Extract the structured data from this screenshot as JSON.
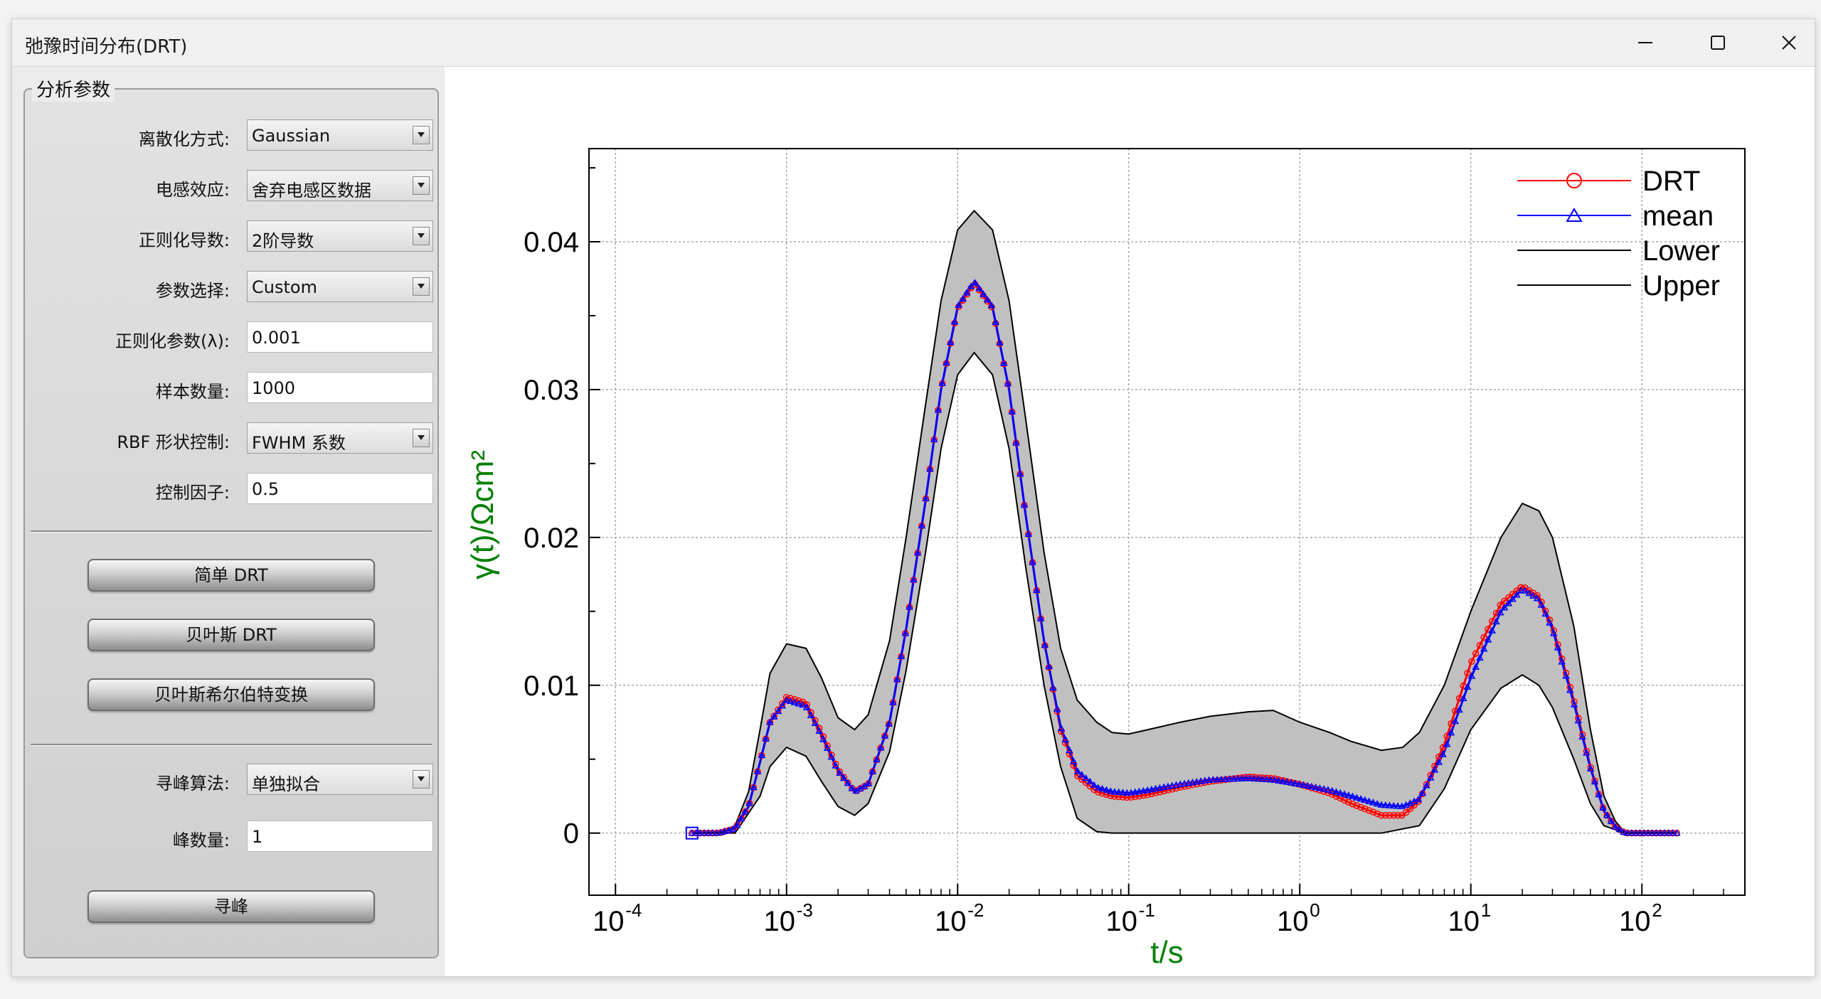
{
  "window": {
    "title": "弛豫时间分布(DRT)",
    "minimize_icon": "minimize-icon",
    "maximize_icon": "maximize-icon",
    "close_icon": "close-icon"
  },
  "panel": {
    "group_title": "分析参数",
    "rows": [
      {
        "label": "离散化方式:",
        "value": "Gaussian",
        "kind": "combo"
      },
      {
        "label": "电感效应:",
        "value": "舍弃电感区数据",
        "kind": "combo"
      },
      {
        "label": "正则化导数:",
        "value": "2阶导数",
        "kind": "combo"
      },
      {
        "label": "参数选择:",
        "value": "Custom",
        "kind": "combo"
      },
      {
        "label": "正则化参数(λ):",
        "value": "0.001",
        "kind": "input"
      },
      {
        "label": "样本数量:",
        "value": "1000",
        "kind": "input"
      },
      {
        "label": "RBF 形状控制:",
        "value": "FWHM 系数",
        "kind": "combo"
      },
      {
        "label": "控制因子:",
        "value": "0.5",
        "kind": "input"
      }
    ],
    "buttons": [
      "简单 DRT",
      "贝叶斯 DRT",
      "贝叶斯希尔伯特变换"
    ],
    "peak_rows": [
      {
        "label": "寻峰算法:",
        "value": "单独拟合",
        "kind": "combo"
      },
      {
        "label": "峰数量:",
        "value": "1",
        "kind": "input"
      }
    ],
    "peak_button": "寻峰"
  },
  "chart_data": {
    "type": "line",
    "title": "",
    "xlabel": "t/s",
    "ylabel": "γ(t)/Ωcm²",
    "xscale": "log",
    "xlim": [
      7e-05,
      400
    ],
    "ylim": [
      -0.0042,
      0.0463
    ],
    "x_tick_labels": [
      "10-4",
      "10-3",
      "10-2",
      "10-1",
      "100",
      "101",
      "102"
    ],
    "x_ticks": [
      0.0001,
      0.001,
      0.01,
      0.1,
      1,
      10,
      100
    ],
    "y_ticks": [
      0,
      0.01,
      0.02,
      0.03,
      0.04
    ],
    "y_tick_labels": [
      "0",
      "0.01",
      "0.02",
      "0.03",
      "0.04"
    ],
    "grid": true,
    "legend_position": "top-right",
    "series": [
      {
        "name": "DRT",
        "color": "#ff0000",
        "marker": "circle",
        "x": [
          0.00028,
          0.0004,
          0.0005,
          0.0006,
          0.0007,
          0.0008,
          0.001,
          0.0013,
          0.0016,
          0.002,
          0.0025,
          0.003,
          0.004,
          0.005,
          0.0065,
          0.008,
          0.01,
          0.0125,
          0.016,
          0.02,
          0.025,
          0.032,
          0.04,
          0.05,
          0.065,
          0.08,
          0.1,
          0.13,
          0.2,
          0.3,
          0.5,
          0.7,
          1,
          1.5,
          2,
          3,
          4,
          5,
          7,
          10,
          15,
          20,
          25,
          30,
          40,
          50,
          60,
          70,
          80,
          100,
          160
        ],
        "values": [
          0,
          0,
          0.0003,
          0.0018,
          0.0048,
          0.0075,
          0.0092,
          0.0088,
          0.0068,
          0.0043,
          0.0028,
          0.0033,
          0.0075,
          0.0138,
          0.0225,
          0.03,
          0.0355,
          0.0372,
          0.0355,
          0.03,
          0.0215,
          0.013,
          0.007,
          0.0039,
          0.0028,
          0.0025,
          0.0024,
          0.0026,
          0.0031,
          0.0035,
          0.0038,
          0.0037,
          0.0033,
          0.0027,
          0.002,
          0.0012,
          0.0012,
          0.0022,
          0.006,
          0.0115,
          0.0155,
          0.0167,
          0.016,
          0.014,
          0.009,
          0.0045,
          0.0015,
          0.0004,
          0,
          0,
          0
        ]
      },
      {
        "name": "mean",
        "color": "#0000ff",
        "marker": "triangle",
        "x": [
          0.00028,
          0.0004,
          0.0005,
          0.0006,
          0.0007,
          0.0008,
          0.001,
          0.0013,
          0.0016,
          0.002,
          0.0025,
          0.003,
          0.004,
          0.005,
          0.0065,
          0.008,
          0.01,
          0.0125,
          0.016,
          0.02,
          0.025,
          0.032,
          0.04,
          0.05,
          0.065,
          0.08,
          0.1,
          0.13,
          0.2,
          0.3,
          0.5,
          0.7,
          1,
          1.5,
          2,
          3,
          4,
          5,
          7,
          10,
          15,
          20,
          25,
          30,
          40,
          50,
          60,
          70,
          80,
          100,
          160
        ],
        "values": [
          0,
          0,
          0.0003,
          0.0018,
          0.0048,
          0.0075,
          0.009,
          0.0086,
          0.0066,
          0.0042,
          0.0028,
          0.0033,
          0.0075,
          0.0138,
          0.0225,
          0.03,
          0.0356,
          0.0373,
          0.0356,
          0.03,
          0.0215,
          0.013,
          0.0072,
          0.0042,
          0.0031,
          0.0028,
          0.0027,
          0.0029,
          0.0033,
          0.0036,
          0.0037,
          0.0036,
          0.0033,
          0.0029,
          0.0025,
          0.0019,
          0.0018,
          0.0023,
          0.0055,
          0.0105,
          0.015,
          0.0165,
          0.0158,
          0.0138,
          0.0088,
          0.0044,
          0.0015,
          0.0004,
          0,
          0,
          0
        ]
      },
      {
        "name": "Lower",
        "color": "#000000",
        "marker": "none",
        "x": [
          0.00028,
          0.0005,
          0.0007,
          0.0008,
          0.001,
          0.0013,
          0.0016,
          0.002,
          0.0025,
          0.003,
          0.004,
          0.005,
          0.0065,
          0.008,
          0.01,
          0.0125,
          0.016,
          0.02,
          0.025,
          0.032,
          0.04,
          0.05,
          0.065,
          0.08,
          0.1,
          0.13,
          1,
          3,
          5,
          7,
          10,
          15,
          20,
          25,
          30,
          40,
          50,
          60,
          80,
          160
        ],
        "values": [
          0,
          0,
          0.0025,
          0.0045,
          0.0058,
          0.0052,
          0.0035,
          0.0018,
          0.0012,
          0.002,
          0.0055,
          0.011,
          0.019,
          0.026,
          0.031,
          0.0325,
          0.031,
          0.026,
          0.018,
          0.01,
          0.0045,
          0.001,
          0.0001,
          0,
          0,
          0,
          0,
          0,
          0.0005,
          0.003,
          0.007,
          0.0098,
          0.0107,
          0.01,
          0.0085,
          0.005,
          0.002,
          0.0005,
          0,
          0
        ]
      },
      {
        "name": "Upper",
        "color": "#000000",
        "marker": "none",
        "x": [
          0.00028,
          0.0004,
          0.0005,
          0.0006,
          0.0007,
          0.0008,
          0.001,
          0.0013,
          0.0016,
          0.002,
          0.0025,
          0.003,
          0.004,
          0.005,
          0.0065,
          0.008,
          0.01,
          0.0125,
          0.016,
          0.02,
          0.025,
          0.032,
          0.04,
          0.05,
          0.065,
          0.08,
          0.1,
          0.13,
          0.2,
          0.3,
          0.5,
          0.7,
          1,
          1.5,
          2,
          3,
          4,
          5,
          7,
          10,
          15,
          20,
          25,
          30,
          40,
          50,
          60,
          70,
          80,
          100,
          160
        ],
        "values": [
          0,
          0,
          0.0005,
          0.0028,
          0.007,
          0.0108,
          0.0128,
          0.0125,
          0.0105,
          0.0078,
          0.007,
          0.008,
          0.013,
          0.02,
          0.029,
          0.036,
          0.0408,
          0.0421,
          0.0408,
          0.036,
          0.028,
          0.019,
          0.0125,
          0.009,
          0.0075,
          0.0068,
          0.0067,
          0.007,
          0.0075,
          0.0079,
          0.0082,
          0.0083,
          0.0075,
          0.0068,
          0.0062,
          0.0056,
          0.0058,
          0.0068,
          0.01,
          0.015,
          0.02,
          0.0223,
          0.0218,
          0.02,
          0.014,
          0.007,
          0.0025,
          0.0008,
          0,
          0,
          0
        ]
      }
    ],
    "marker_extra": {
      "x": 0.00028,
      "y": 0,
      "marker": "square",
      "color": "#0000ff"
    },
    "colors": {
      "grid": "#aaaaaa",
      "band_fill": "#c0c0c0",
      "axis_title": "#008000"
    }
  }
}
